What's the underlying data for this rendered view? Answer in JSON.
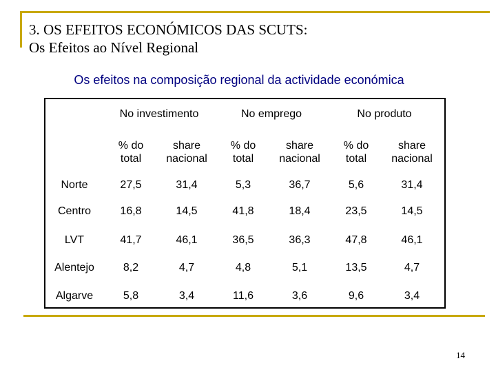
{
  "title": {
    "line1": "3. OS EFEITOS ECONÓMICOS DAS SCUTS:",
    "line2": "Os Efeitos ao Nível Regional"
  },
  "subtitle": "Os efeitos na composição regional da actividade económica",
  "table": {
    "groups": [
      "No investimento",
      "No emprego",
      "No produto"
    ],
    "subheaders": [
      {
        "line1": "% do",
        "line2": "total"
      },
      {
        "line1": "share",
        "line2": "nacional"
      },
      {
        "line1": "% do",
        "line2": "total"
      },
      {
        "line1": "share",
        "line2": "nacional"
      },
      {
        "line1": "% do",
        "line2": "total"
      },
      {
        "line1": "share",
        "line2": "nacional"
      }
    ],
    "rows": [
      {
        "region": "Norte",
        "values": [
          "27,5",
          "31,4",
          "5,3",
          "36,7",
          "5,6",
          "31,4"
        ]
      },
      {
        "region": "Centro",
        "values": [
          "16,8",
          "14,5",
          "41,8",
          "18,4",
          "23,5",
          "14,5"
        ]
      },
      {
        "region": "LVT",
        "values": [
          "41,7",
          "46,1",
          "36,5",
          "36,3",
          "47,8",
          "46,1"
        ]
      },
      {
        "region": "Alentejo",
        "values": [
          "8,2",
          "4,7",
          "4,8",
          "5,1",
          "13,5",
          "4,7"
        ]
      },
      {
        "region": "Algarve",
        "values": [
          "5,8",
          "3,4",
          "11,6",
          "3,6",
          "9,6",
          "3,4"
        ]
      }
    ]
  },
  "page_number": "14",
  "colors": {
    "accent_rule": "#c8a800",
    "subtitle": "#000080"
  }
}
